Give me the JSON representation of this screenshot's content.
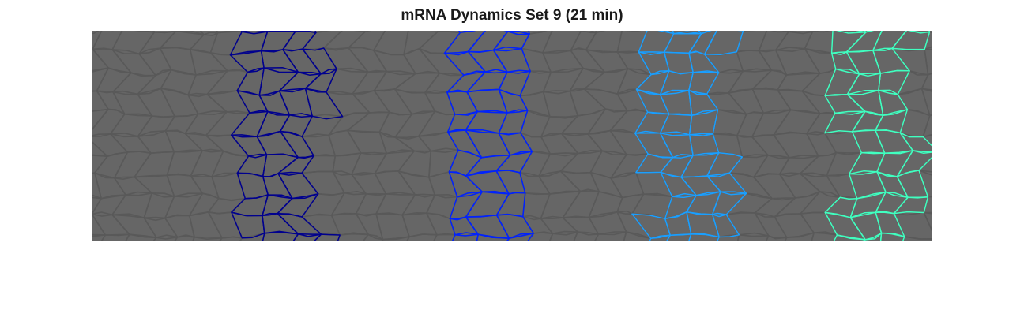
{
  "figure": {
    "title": "mRNA Dynamics Set 9 (21 min)"
  },
  "image": {
    "description_name": "embryo-tissue-cell-outlines",
    "background_color": "#666666",
    "membrane_color": "#595959",
    "stripes": [
      {
        "name": "stripe-1",
        "color": "#00008f"
      },
      {
        "name": "stripe-2",
        "color": "#0022ff"
      },
      {
        "name": "stripe-3",
        "color": "#1a9fff"
      },
      {
        "name": "stripe-4",
        "color": "#40ffc0"
      }
    ]
  }
}
